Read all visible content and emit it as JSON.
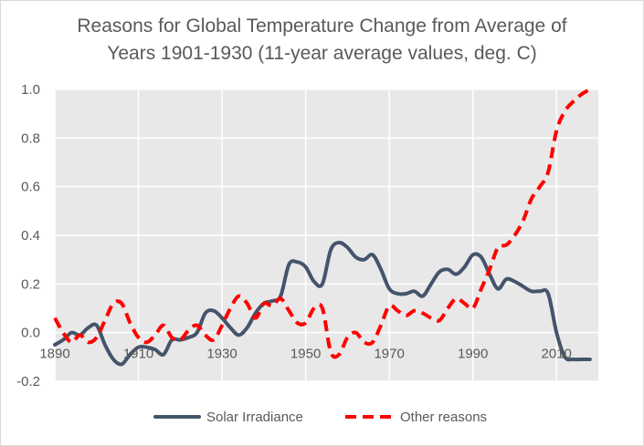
{
  "chart_data": {
    "type": "line",
    "title_line1": "Reasons for Global Temperature Change from Average of",
    "title_line2": "Years 1901-1930 (11-year average values, deg. C)",
    "xlim": [
      1890,
      2020
    ],
    "ylim": [
      -0.2,
      1.0
    ],
    "x_ticks": [
      "1890",
      "1910",
      "1930",
      "1950",
      "1970",
      "1990",
      "2010"
    ],
    "y_ticks": [
      "1.0",
      "0.8",
      "0.6",
      "0.4",
      "0.2",
      "0.0",
      "-0.2"
    ],
    "colors": {
      "plot_bg": "#e8e8e8",
      "grid": "#ffffff",
      "solar": "#44546a",
      "other": "#ff0000"
    },
    "series": [
      {
        "name": "Solar Irradiance",
        "style": "solid",
        "x": [
          1890,
          1892,
          1894,
          1896,
          1898,
          1900,
          1902,
          1904,
          1906,
          1908,
          1910,
          1912,
          1914,
          1916,
          1918,
          1920,
          1922,
          1924,
          1926,
          1928,
          1930,
          1932,
          1934,
          1936,
          1938,
          1940,
          1942,
          1944,
          1946,
          1948,
          1950,
          1952,
          1954,
          1956,
          1958,
          1960,
          1962,
          1964,
          1966,
          1968,
          1970,
          1972,
          1974,
          1976,
          1978,
          1980,
          1982,
          1984,
          1986,
          1988,
          1990,
          1992,
          1994,
          1996,
          1998,
          2000,
          2002,
          2004,
          2006,
          2008,
          2010,
          2012,
          2014,
          2016,
          2018
        ],
        "values": [
          -0.05,
          -0.03,
          0.0,
          -0.01,
          0.02,
          0.03,
          -0.05,
          -0.11,
          -0.13,
          -0.09,
          -0.06,
          -0.06,
          -0.07,
          -0.09,
          -0.03,
          -0.03,
          -0.02,
          0.0,
          0.08,
          0.09,
          0.06,
          0.02,
          -0.01,
          0.02,
          0.08,
          0.12,
          0.13,
          0.15,
          0.28,
          0.29,
          0.27,
          0.21,
          0.2,
          0.34,
          0.37,
          0.35,
          0.31,
          0.3,
          0.32,
          0.26,
          0.18,
          0.16,
          0.16,
          0.17,
          0.15,
          0.2,
          0.25,
          0.26,
          0.24,
          0.27,
          0.32,
          0.31,
          0.24,
          0.18,
          0.22,
          0.21,
          0.19,
          0.17,
          0.17,
          0.16,
          0.0,
          -0.1,
          -0.11,
          -0.11,
          -0.11
        ]
      },
      {
        "name": "Other reasons",
        "style": "dashed",
        "x": [
          1890,
          1892,
          1894,
          1896,
          1898,
          1900,
          1902,
          1904,
          1906,
          1908,
          1910,
          1912,
          1914,
          1916,
          1918,
          1920,
          1922,
          1924,
          1926,
          1928,
          1930,
          1932,
          1934,
          1936,
          1938,
          1940,
          1942,
          1944,
          1946,
          1948,
          1950,
          1952,
          1954,
          1956,
          1958,
          1960,
          1962,
          1964,
          1966,
          1968,
          1970,
          1972,
          1974,
          1976,
          1978,
          1980,
          1982,
          1984,
          1986,
          1988,
          1990,
          1992,
          1994,
          1996,
          1998,
          2000,
          2002,
          2004,
          2006,
          2008,
          2010,
          2012,
          2014,
          2016,
          2018
        ],
        "values": [
          0.06,
          0.0,
          -0.04,
          -0.01,
          -0.04,
          -0.02,
          0.05,
          0.12,
          0.12,
          0.04,
          -0.02,
          -0.04,
          -0.01,
          0.03,
          -0.02,
          -0.03,
          0.01,
          0.03,
          -0.01,
          -0.03,
          0.03,
          0.1,
          0.15,
          0.12,
          0.06,
          0.12,
          0.11,
          0.14,
          0.09,
          0.04,
          0.04,
          0.1,
          0.1,
          -0.08,
          -0.09,
          -0.02,
          0.0,
          -0.04,
          -0.04,
          0.03,
          0.11,
          0.09,
          0.07,
          0.09,
          0.08,
          0.06,
          0.05,
          0.1,
          0.14,
          0.12,
          0.1,
          0.18,
          0.26,
          0.35,
          0.36,
          0.4,
          0.46,
          0.55,
          0.6,
          0.66,
          0.83,
          0.91,
          0.95,
          0.98,
          1.0
        ]
      }
    ]
  }
}
